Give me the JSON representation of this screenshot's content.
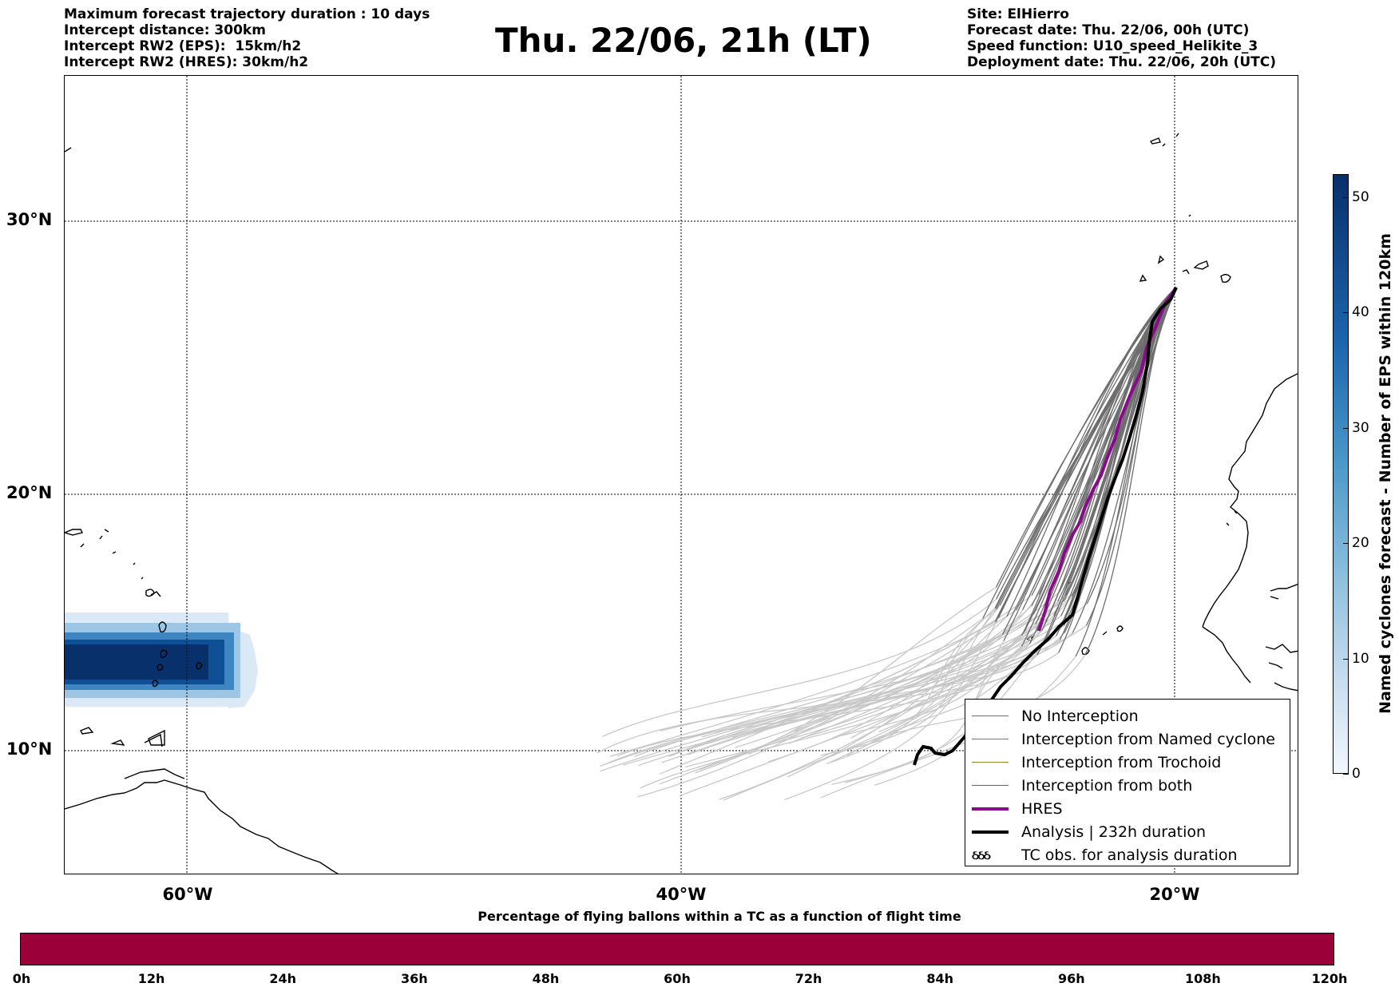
{
  "header_left": [
    "Maximum forecast trajectory duration : 10 days",
    "Intercept distance: 300km",
    "Intercept RW2 (EPS):  15km/h2",
    "Intercept RW2 (HRES): 30km/h2"
  ],
  "title": "Thu. 22/06, 21h (LT)",
  "header_right": [
    "Site: ElHierro",
    "Forecast date: Thu. 22/06, 00h (UTC)",
    "Speed function: U10_speed_Helikite_3",
    "Deployment date: Thu. 22/06, 20h (UTC)"
  ],
  "map": {
    "lat_labels": [
      "30°N",
      "20°N",
      "10°N"
    ],
    "lon_labels": [
      "60°W",
      "40°W",
      "20°W"
    ],
    "colors": {
      "no_interception": "#6e6e6e",
      "no_interception_late": "#c8c8c8",
      "named_cyclone": "#e8561c",
      "trochoid": "#8a8a2a",
      "both": "#2a8a2a",
      "hres": "#8b0a8b",
      "analysis": "#000000",
      "tc_dark": "#08306b",
      "tc_light": "#c9ddf0"
    }
  },
  "legend": {
    "items": [
      {
        "label": "No Interception",
        "color": "#6e6e6e",
        "width": 1.5
      },
      {
        "label": "Interception from Named cyclone",
        "color": "#e8561c",
        "width": 1.5
      },
      {
        "label": "Interception from Trochoid",
        "color": "#8a8a2a",
        "width": 1.5
      },
      {
        "label": "Interception from both",
        "color": "#2a8a2a",
        "width": 1.5
      },
      {
        "label": "HRES",
        "color": "#8b0a8b",
        "width": 4
      },
      {
        "label": "Analysis | 232h duration",
        "color": "#000000",
        "width": 4
      }
    ],
    "obs_label": "TC obs. for analysis duration",
    "obs_symbol": "ઠઠઠ"
  },
  "colorbar": {
    "title": "Named cyclones forecast - Number of EPS within 120km",
    "ticks": [
      "0",
      "10",
      "20",
      "30",
      "40",
      "50"
    ],
    "min": 0,
    "max": 52
  },
  "bottom_bar": {
    "title": "Percentage of flying ballons within a TC as a function of flight time",
    "ticks": [
      "0h",
      "12h",
      "24h",
      "36h",
      "48h",
      "60h",
      "72h",
      "84h",
      "96h",
      "108h",
      "120h"
    ],
    "color": "#9b0039"
  }
}
